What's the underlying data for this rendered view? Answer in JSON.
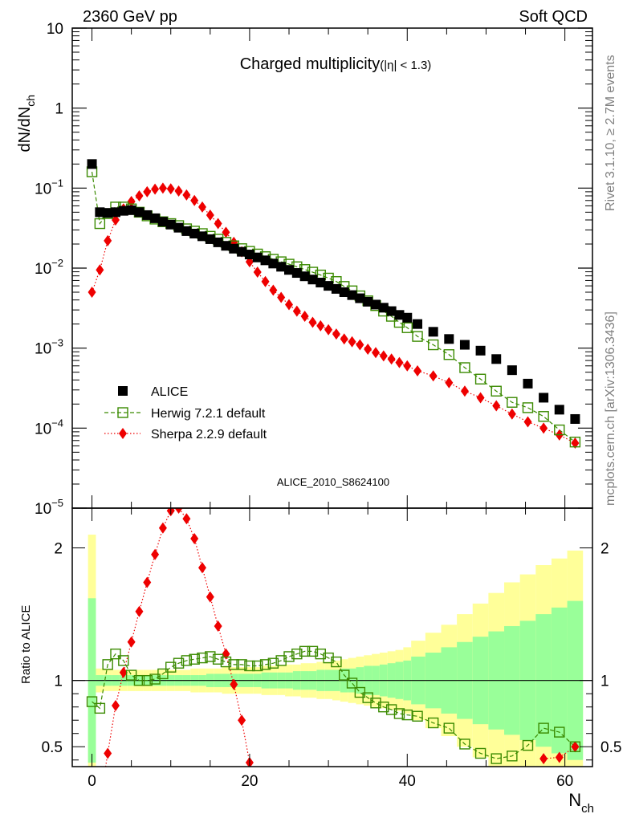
{
  "header": {
    "energy": "2360 GeV pp",
    "category": "Soft QCD"
  },
  "side_text": {
    "rivet": "Rivet 3.1.10, ≥ 2.7M events",
    "site": "mcplots.cern.ch [arXiv:1306.3436]"
  },
  "colors": {
    "alice": "#000000",
    "herwig": "#3a8a00",
    "sherpa": "#ee0000",
    "band_inner": "#99ff99",
    "band_outer": "#ffff99"
  },
  "chart_data": [
    {
      "type": "scatter",
      "title": "Charged multiplicity",
      "title_suffix": "(|η| < 1.3)",
      "ylabel": "dN/dN",
      "ylabel_sub": "ch",
      "yscale": "log",
      "ylim": [
        1e-05,
        10
      ],
      "xlim": [
        -2.5,
        63.5
      ],
      "y_ticks": [
        {
          "label": "10",
          "value": 10
        },
        {
          "label": "1",
          "value": 1
        },
        {
          "label": "10",
          "sup": "−1",
          "value": 0.1
        },
        {
          "label": "10",
          "sup": "−2",
          "value": 0.01
        },
        {
          "label": "10",
          "sup": "−3",
          "value": 0.001
        },
        {
          "label": "10",
          "sup": "−4",
          "value": 0.0001
        },
        {
          "label": "10",
          "sup": "−5",
          "value": 1e-05
        }
      ],
      "watermark": "ALICE_2010_S8624100",
      "legend": [
        {
          "label": "ALICE"
        },
        {
          "label": "Herwig 7.2.1 default"
        },
        {
          "label": "Sherpa 2.2.9 default"
        }
      ],
      "series": [
        {
          "name": "ALICE",
          "x": [
            0,
            1,
            2,
            3,
            4,
            5,
            6,
            7,
            8,
            9,
            10,
            11,
            12,
            13,
            14,
            15,
            16,
            17,
            18,
            19,
            20,
            21,
            22,
            23,
            24,
            25,
            26,
            27,
            28,
            29,
            30,
            31,
            32,
            33,
            34,
            35,
            36,
            37,
            38,
            39,
            40,
            41.3,
            43.3,
            45.3,
            47.3,
            49.3,
            51.3,
            53.3,
            55.3,
            57.3,
            59.3,
            61.3
          ],
          "y": [
            0.2,
            0.05,
            0.049,
            0.05,
            0.052,
            0.053,
            0.05,
            0.046,
            0.042,
            0.038,
            0.035,
            0.032,
            0.029,
            0.027,
            0.025,
            0.023,
            0.021,
            0.019,
            0.0175,
            0.016,
            0.0148,
            0.0136,
            0.0125,
            0.0114,
            0.0104,
            0.0095,
            0.0087,
            0.0079,
            0.0072,
            0.0066,
            0.006,
            0.0055,
            0.005,
            0.0046,
            0.0042,
            0.0038,
            0.0035,
            0.0032,
            0.0029,
            0.0026,
            0.0024,
            0.002,
            0.0016,
            0.0013,
            0.0011,
            0.00093,
            0.00073,
            0.00053,
            0.00036,
            0.00024,
            0.00017,
            0.00013
          ]
        },
        {
          "name": "Herwig 7.2.1 default",
          "x": [
            0,
            1,
            2,
            3,
            4,
            5,
            6,
            7,
            8,
            9,
            10,
            11,
            12,
            13,
            14,
            15,
            16,
            17,
            18,
            19,
            20,
            21,
            22,
            23,
            24,
            25,
            26,
            27,
            28,
            29,
            30,
            31,
            32,
            33,
            34,
            35,
            36,
            37,
            38,
            39,
            40,
            41.3,
            43.3,
            45.3,
            47.3,
            49.3,
            51.3,
            53.3,
            55.3,
            57.3,
            59.3,
            61.3
          ],
          "y": [
            0.16,
            0.036,
            0.048,
            0.058,
            0.058,
            0.055,
            0.05,
            0.045,
            0.041,
            0.038,
            0.036,
            0.034,
            0.031,
            0.029,
            0.027,
            0.025,
            0.023,
            0.021,
            0.019,
            0.0175,
            0.0162,
            0.015,
            0.0139,
            0.0129,
            0.012,
            0.0112,
            0.0104,
            0.0096,
            0.0089,
            0.0082,
            0.0075,
            0.0068,
            0.0059,
            0.0052,
            0.0045,
            0.0039,
            0.0034,
            0.0029,
            0.0025,
            0.0021,
            0.0018,
            0.0014,
            0.0011,
            0.00083,
            0.00057,
            0.00041,
            0.00029,
            0.00021,
            0.00018,
            0.00014,
            9.5e-05,
            6.7e-05
          ]
        },
        {
          "name": "Sherpa 2.2.9 default",
          "x": [
            0,
            1,
            2,
            3,
            4,
            5,
            6,
            7,
            8,
            9,
            10,
            11,
            12,
            13,
            14,
            15,
            16,
            17,
            18,
            19,
            20,
            21,
            22,
            23,
            24,
            25,
            26,
            27,
            28,
            29,
            30,
            31,
            32,
            33,
            34,
            35,
            36,
            37,
            38,
            39,
            40,
            41.3,
            43.3,
            45.3,
            47.3,
            49.3,
            51.3,
            53.3,
            55.3,
            57.3,
            59.3,
            61.3
          ],
          "y": [
            0.005,
            0.0095,
            0.022,
            0.04,
            0.055,
            0.068,
            0.08,
            0.09,
            0.097,
            0.1,
            0.098,
            0.092,
            0.082,
            0.07,
            0.058,
            0.046,
            0.036,
            0.028,
            0.021,
            0.016,
            0.012,
            0.0089,
            0.0068,
            0.0053,
            0.0043,
            0.0035,
            0.0029,
            0.0025,
            0.0021,
            0.0019,
            0.0017,
            0.0015,
            0.0013,
            0.0012,
            0.0011,
            0.00097,
            0.00088,
            0.0008,
            0.00073,
            0.00066,
            0.0006,
            0.00052,
            0.00045,
            0.00037,
            0.00029,
            0.00024,
            0.00019,
            0.00015,
            0.00012,
            0.0001,
            8.2e-05,
            6.5e-05
          ]
        }
      ]
    },
    {
      "type": "line",
      "ylabel": "Ratio to ALICE",
      "xlabel": "N",
      "xlabel_sub": "ch",
      "ylim": [
        0.35,
        2.3
      ],
      "xlim": [
        -2.5,
        63.5
      ],
      "x_ticks": [
        "0",
        "20",
        "40",
        "60"
      ],
      "y_ticks": [
        "0.5",
        "1",
        "2"
      ],
      "reference": 1,
      "band": {
        "x": [
          -0.5,
          0.5,
          1.5,
          2.5,
          3.5,
          4.5,
          5.5,
          6.5,
          7.5,
          8.5,
          9.5,
          10.5,
          11.5,
          12.5,
          13.5,
          14.5,
          15.5,
          16.5,
          17.5,
          18.5,
          19.5,
          20.5,
          21.5,
          22.5,
          23.5,
          24.5,
          25.5,
          26.5,
          27.5,
          28.5,
          29.5,
          30.5,
          31.5,
          32.5,
          33.5,
          34.5,
          35.5,
          36.5,
          37.5,
          38.5,
          39.5,
          40.5,
          42.3,
          44.3,
          46.3,
          48.3,
          50.3,
          52.3,
          54.3,
          56.3,
          58.3,
          60.3,
          62.3
        ],
        "inner": [
          0.62,
          0.04,
          0.04,
          0.04,
          0.04,
          0.04,
          0.04,
          0.04,
          0.04,
          0.04,
          0.04,
          0.04,
          0.04,
          0.04,
          0.04,
          0.05,
          0.05,
          0.05,
          0.05,
          0.05,
          0.05,
          0.05,
          0.06,
          0.06,
          0.06,
          0.06,
          0.07,
          0.07,
          0.07,
          0.08,
          0.08,
          0.08,
          0.09,
          0.09,
          0.1,
          0.11,
          0.11,
          0.12,
          0.13,
          0.14,
          0.15,
          0.18,
          0.21,
          0.25,
          0.29,
          0.33,
          0.37,
          0.41,
          0.45,
          0.5,
          0.55,
          0.6
        ],
        "outer": [
          1.1,
          0.09,
          0.08,
          0.08,
          0.08,
          0.08,
          0.08,
          0.08,
          0.08,
          0.08,
          0.08,
          0.08,
          0.08,
          0.09,
          0.09,
          0.09,
          0.09,
          0.1,
          0.1,
          0.1,
          0.1,
          0.1,
          0.11,
          0.11,
          0.11,
          0.12,
          0.12,
          0.13,
          0.13,
          0.14,
          0.14,
          0.15,
          0.16,
          0.17,
          0.18,
          0.19,
          0.2,
          0.21,
          0.22,
          0.23,
          0.25,
          0.3,
          0.36,
          0.42,
          0.5,
          0.58,
          0.66,
          0.74,
          0.8,
          0.87,
          0.92,
          0.98
        ]
      },
      "series": [
        {
          "name": "Herwig 7.2.1 default",
          "x": [
            0,
            1,
            2,
            3,
            4,
            5,
            6,
            7,
            8,
            9,
            10,
            11,
            12,
            13,
            14,
            15,
            16,
            17,
            18,
            19,
            20,
            21,
            22,
            23,
            24,
            25,
            26,
            27,
            28,
            29,
            30,
            31,
            32,
            33,
            34,
            35,
            36,
            37,
            38,
            39,
            40,
            41.3,
            43.3,
            45.3,
            47.3,
            49.3,
            51.3,
            53.3,
            55.3,
            57.3,
            59.3,
            61.3
          ],
          "y": [
            0.84,
            0.79,
            1.12,
            1.2,
            1.15,
            1.04,
            1.0,
            1.0,
            1.01,
            1.05,
            1.1,
            1.13,
            1.15,
            1.16,
            1.17,
            1.18,
            1.16,
            1.14,
            1.12,
            1.12,
            1.11,
            1.11,
            1.12,
            1.13,
            1.15,
            1.18,
            1.2,
            1.22,
            1.22,
            1.2,
            1.17,
            1.14,
            1.04,
            0.98,
            0.91,
            0.87,
            0.83,
            0.8,
            0.78,
            0.75,
            0.74,
            0.73,
            0.68,
            0.64,
            0.52,
            0.45,
            0.41,
            0.43,
            0.51,
            0.64,
            0.61,
            0.5
          ]
        },
        {
          "name": "Sherpa 2.2.9 default",
          "x": [
            2,
            3,
            4,
            5,
            6,
            7,
            8,
            9,
            10,
            11,
            12,
            13,
            14,
            15,
            16,
            17,
            18,
            19,
            20,
            57.3,
            59.3,
            61.3
          ],
          "y": [
            0.45,
            0.81,
            1.06,
            1.29,
            1.52,
            1.74,
            1.95,
            2.15,
            2.28,
            2.3,
            2.22,
            2.07,
            1.85,
            1.63,
            1.41,
            1.2,
            0.97,
            0.7,
            0.38,
            0.41,
            0.42,
            0.5
          ]
        }
      ]
    }
  ]
}
